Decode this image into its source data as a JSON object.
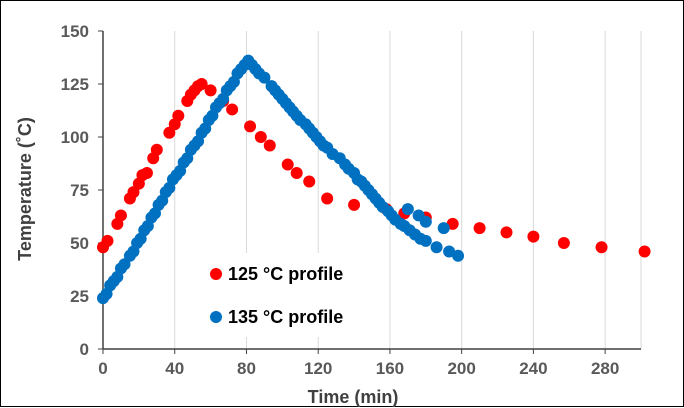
{
  "chart_data": {
    "type": "scatter",
    "title": "",
    "xlabel": "Time (min)",
    "ylabel": "Temperature (˚C)",
    "xlim": [
      0,
      300
    ],
    "ylim": [
      0,
      150
    ],
    "x_ticks": [
      "0",
      "40",
      "80",
      "120",
      "160",
      "200",
      "240",
      "280"
    ],
    "y_ticks": [
      "0",
      "25",
      "50",
      "75",
      "100",
      "125",
      "150"
    ],
    "grid": "vertical",
    "legend": "bottom-left",
    "series": [
      {
        "name": "125 °C profile",
        "color": "#ff0000",
        "points": [
          [
            0,
            48
          ],
          [
            2.5,
            51
          ],
          [
            8,
            59
          ],
          [
            10,
            63
          ],
          [
            15,
            71
          ],
          [
            17,
            74
          ],
          [
            20,
            78
          ],
          [
            22,
            82
          ],
          [
            24.5,
            83
          ],
          [
            28,
            90
          ],
          [
            30,
            94
          ],
          [
            37,
            102
          ],
          [
            40,
            106
          ],
          [
            42,
            110
          ],
          [
            47,
            117
          ],
          [
            49,
            120
          ],
          [
            51,
            122
          ],
          [
            53,
            124
          ],
          [
            55,
            125
          ],
          [
            60,
            122
          ],
          [
            67,
            117
          ],
          [
            72,
            113
          ],
          [
            82,
            105
          ],
          [
            88,
            100
          ],
          [
            93,
            96
          ],
          [
            103,
            87
          ],
          [
            108,
            83
          ],
          [
            115,
            79
          ],
          [
            125,
            71
          ],
          [
            140,
            68
          ],
          [
            158,
            66
          ],
          [
            168,
            64
          ],
          [
            180,
            62
          ],
          [
            195,
            59
          ],
          [
            210,
            57
          ],
          [
            225,
            55
          ],
          [
            240,
            53
          ],
          [
            257,
            50
          ],
          [
            278,
            48
          ],
          [
            302,
            46
          ]
        ]
      },
      {
        "name": "135 °C profile",
        "color": "#0070c0",
        "points": [
          [
            0,
            24
          ],
          [
            2,
            26
          ],
          [
            4,
            30
          ],
          [
            6,
            32
          ],
          [
            8,
            34
          ],
          [
            10,
            38
          ],
          [
            12,
            40
          ],
          [
            15,
            44
          ],
          [
            17,
            46
          ],
          [
            19,
            50
          ],
          [
            21,
            52
          ],
          [
            23,
            56
          ],
          [
            25,
            58
          ],
          [
            27,
            62
          ],
          [
            29,
            64
          ],
          [
            31,
            68
          ],
          [
            33,
            70
          ],
          [
            35,
            74
          ],
          [
            37,
            76
          ],
          [
            39,
            80
          ],
          [
            41,
            82
          ],
          [
            43,
            84
          ],
          [
            45,
            88
          ],
          [
            47,
            90
          ],
          [
            49,
            94
          ],
          [
            51,
            96
          ],
          [
            53,
            98
          ],
          [
            55,
            102
          ],
          [
            57,
            104
          ],
          [
            59,
            108
          ],
          [
            61,
            110
          ],
          [
            63,
            114
          ],
          [
            65,
            116
          ],
          [
            67,
            118
          ],
          [
            69,
            122
          ],
          [
            71,
            124
          ],
          [
            73,
            126
          ],
          [
            75,
            130
          ],
          [
            77,
            132
          ],
          [
            79,
            134
          ],
          [
            81,
            136
          ],
          [
            83,
            134
          ],
          [
            85,
            132
          ],
          [
            87,
            130
          ],
          [
            90,
            128
          ],
          [
            94,
            124
          ],
          [
            96,
            122
          ],
          [
            98,
            120
          ],
          [
            100,
            118
          ],
          [
            102,
            116
          ],
          [
            104,
            114
          ],
          [
            106,
            112
          ],
          [
            108,
            110
          ],
          [
            110,
            108
          ],
          [
            113,
            106
          ],
          [
            115,
            104
          ],
          [
            117,
            102
          ],
          [
            119,
            100
          ],
          [
            121,
            98
          ],
          [
            123,
            96
          ],
          [
            125,
            95
          ],
          [
            128,
            92
          ],
          [
            132,
            90
          ],
          [
            135,
            87
          ],
          [
            137,
            85
          ],
          [
            140,
            83
          ],
          [
            142,
            80
          ],
          [
            144,
            79
          ],
          [
            146,
            77
          ],
          [
            148,
            75
          ],
          [
            150,
            73
          ],
          [
            152,
            71
          ],
          [
            154,
            69
          ],
          [
            156,
            67
          ],
          [
            159,
            65
          ],
          [
            161,
            63
          ],
          [
            163,
            61
          ],
          [
            166,
            59
          ],
          [
            168,
            58
          ],
          [
            171,
            56
          ],
          [
            174,
            54
          ],
          [
            177,
            52
          ],
          [
            180,
            51
          ],
          [
            186,
            48
          ],
          [
            193,
            46
          ],
          [
            198,
            44
          ],
          [
            170,
            66
          ],
          [
            176,
            63
          ],
          [
            180,
            60
          ],
          [
            190,
            57
          ]
        ]
      }
    ]
  }
}
